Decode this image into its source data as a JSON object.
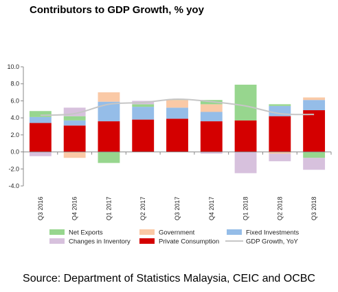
{
  "chart_data": {
    "type": "bar",
    "title": "Contributors to GDP Growth, % yoy",
    "categories": [
      "Q3 2016",
      "Q4 2016",
      "Q1 2017",
      "Q2 2017",
      "Q3 2017",
      "Q4 2017",
      "Q1 2018",
      "Q2 2018",
      "Q3 2018"
    ],
    "ylim": [
      -4.0,
      10.0
    ],
    "yticks": [
      "10.0",
      "8.0",
      "6.0",
      "4.0",
      "2.0",
      "0.0",
      "-2.0",
      "-4.0"
    ],
    "ytick_values": [
      10,
      8,
      6,
      4,
      2,
      0,
      -2,
      -4
    ],
    "grid": false,
    "legend_position": "bottom",
    "series": [
      {
        "name": "Private Consumption",
        "kind": "bar",
        "color": "#d40000",
        "values": [
          3.4,
          3.1,
          3.6,
          3.8,
          3.9,
          3.6,
          3.7,
          4.2,
          4.9
        ]
      },
      {
        "name": "Fixed Investments",
        "kind": "bar",
        "color": "#95bde8",
        "values": [
          0.7,
          0.6,
          2.3,
          1.5,
          1.3,
          1.1,
          0.0,
          1.2,
          1.2
        ]
      },
      {
        "name": "Government",
        "kind": "bar",
        "color": "#fac9a6",
        "values": [
          0.0,
          -0.7,
          1.1,
          0.0,
          0.9,
          0.9,
          0.0,
          -0.2,
          0.3
        ]
      },
      {
        "name": "Net Exports",
        "kind": "bar",
        "color": "#97d68e",
        "values": [
          0.7,
          0.5,
          -1.3,
          0.3,
          0.1,
          0.5,
          4.2,
          0.2,
          -0.7
        ]
      },
      {
        "name": "Changes in Inventory",
        "kind": "bar",
        "color": "#d7c1dd",
        "values": [
          -0.5,
          1.0,
          0.0,
          0.4,
          0.0,
          -0.2,
          -2.5,
          -0.9,
          -1.4
        ]
      },
      {
        "name": "GDP Growth, YoY",
        "kind": "line",
        "color": "#c6c6c6",
        "values": [
          4.3,
          4.5,
          5.6,
          5.8,
          6.2,
          5.9,
          5.4,
          4.5,
          4.4
        ]
      }
    ]
  },
  "source_note": "Source: Department of Statistics Malaysia, CEIC and OCBC"
}
